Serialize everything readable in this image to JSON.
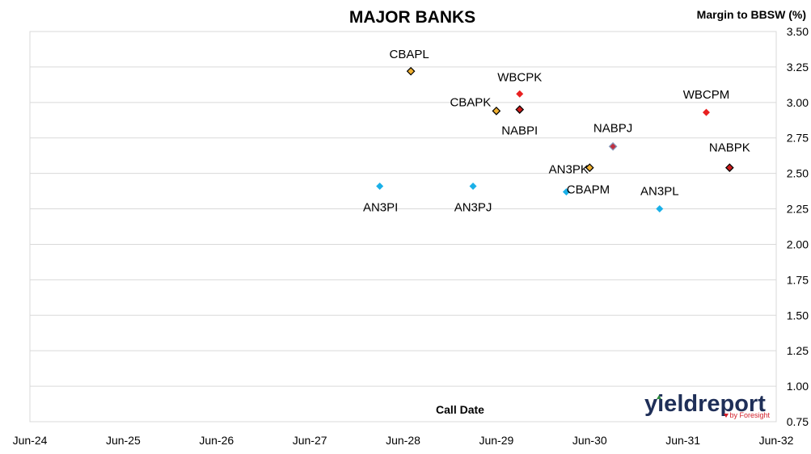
{
  "chart_data": {
    "type": "scatter",
    "title": "MAJOR BANKS",
    "xlabel": "Call Date",
    "ylabel": "Margin to BBSW (%)",
    "x_ticks": [
      "Jun-24",
      "Jun-25",
      "Jun-26",
      "Jun-27",
      "Jun-28",
      "Jun-29",
      "Jun-30",
      "Jun-31",
      "Jun-32"
    ],
    "xlim": [
      "Jun-24",
      "Jun-32"
    ],
    "ylim": [
      0.75,
      3.5
    ],
    "y_ticks": [
      "0.75",
      "1.00",
      "1.25",
      "1.50",
      "1.75",
      "2.00",
      "2.25",
      "2.50",
      "2.75",
      "3.00",
      "3.25",
      "3.50"
    ],
    "y_axis_side": "right",
    "grid": true,
    "points": [
      {
        "label": "CBAPL",
        "x": "2028-07",
        "y": 3.22,
        "color": "#f0b030",
        "outline": "#000000"
      },
      {
        "label": "WBCPK",
        "x": "2029-09",
        "y": 3.06,
        "color": "#e82020",
        "outline": "none"
      },
      {
        "label": "CBAPK",
        "x": "2029-06",
        "y": 2.94,
        "color": "#f0b030",
        "outline": "#000000"
      },
      {
        "label": "NABPI",
        "x": "2029-09",
        "y": 2.95,
        "color": "#cc1c1c",
        "outline": "#000000"
      },
      {
        "label": "WBCPM",
        "x": "2031-09",
        "y": 2.93,
        "color": "#e82020",
        "outline": "none"
      },
      {
        "label": "NABPJ",
        "x": "2030-09",
        "y": 2.69,
        "color": "#c03040",
        "outline": "#8899bb"
      },
      {
        "label": "NABPK",
        "x": "2031-12",
        "y": 2.54,
        "color": "#cc1c1c",
        "outline": "#000000"
      },
      {
        "label": "AN3PK",
        "x": "2030-06",
        "y": 2.54,
        "color": "#f0b030",
        "outline": "#000000"
      },
      {
        "label": "AN3PI",
        "x": "2028-03",
        "y": 2.41,
        "color": "#1ab0e8",
        "outline": "none"
      },
      {
        "label": "AN3PJ",
        "x": "2029-03",
        "y": 2.41,
        "color": "#1ab0e8",
        "outline": "none"
      },
      {
        "label": "CBAPM",
        "x": "2030-03",
        "y": 2.37,
        "color": "#1ab0e8",
        "outline": "none"
      },
      {
        "label": "AN3PL",
        "x": "2031-03",
        "y": 2.25,
        "color": "#1ab0e8",
        "outline": "none"
      }
    ]
  },
  "logo": {
    "text_main": "yieldreport",
    "text_sub": "by Foresight"
  }
}
